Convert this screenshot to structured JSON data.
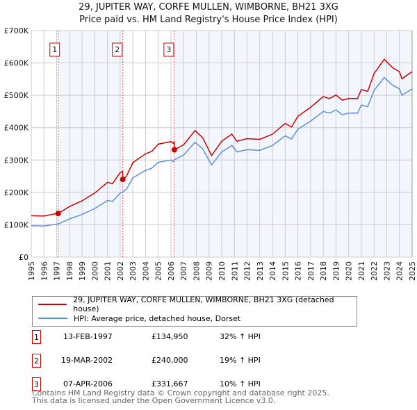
{
  "chart_data": {
    "type": "line",
    "title": "29, JUPITER WAY, CORFE MULLEN, WIMBORNE, BH21 3XG",
    "subtitle": "Price paid vs. HM Land Registry's House Price Index (HPI)",
    "xlim": [
      1995,
      2025
    ],
    "ylim": [
      0,
      700000
    ],
    "y_ticks": [
      {
        "v": 0,
        "l": "£0"
      },
      {
        "v": 100000,
        "l": "£100K"
      },
      {
        "v": 200000,
        "l": "£200K"
      },
      {
        "v": 300000,
        "l": "£300K"
      },
      {
        "v": 400000,
        "l": "£400K"
      },
      {
        "v": 500000,
        "l": "£500K"
      },
      {
        "v": 600000,
        "l": "£600K"
      },
      {
        "v": 700000,
        "l": "£700K"
      }
    ],
    "x_ticks": [
      "1995",
      "1996",
      "1997",
      "1998",
      "1999",
      "2000",
      "2001",
      "2002",
      "2003",
      "2004",
      "2005",
      "2006",
      "2007",
      "2008",
      "2009",
      "2010",
      "2011",
      "2012",
      "2013",
      "2014",
      "2015",
      "2016",
      "2017",
      "2018",
      "2019",
      "2020",
      "2021",
      "2022",
      "2023",
      "2024",
      "2025"
    ],
    "grid": true,
    "series": [
      {
        "name": "29, JUPITER WAY, CORFE MULLEN, WIMBORNE, BH21 3XG (detached house)",
        "color": "#cc0000",
        "x": [
          1995,
          1996,
          1997,
          1997.12,
          1998,
          1999,
          2000,
          2001,
          2001.4,
          2002,
          2002.2,
          2002.21,
          2002.5,
          2003,
          2004,
          2004.5,
          2005,
          2006,
          2006.2,
          2006.26,
          2006.27,
          2007,
          2007.9,
          2008.5,
          2009.2,
          2010,
          2010.8,
          2011.2,
          2012,
          2013,
          2014,
          2015,
          2015.5,
          2016,
          2017,
          2018,
          2018.5,
          2019,
          2019.5,
          2020,
          2020.7,
          2021,
          2021.5,
          2022,
          2022.8,
          2023.5,
          2024,
          2024.2,
          2025
        ],
        "y": [
          128000,
          127000,
          134600,
          134950,
          156000,
          174000,
          198000,
          231000,
          227000,
          261000,
          265000,
          240000,
          250000,
          292000,
          319000,
          327000,
          349000,
          357000,
          351000,
          358000,
          331667,
          347000,
          391000,
          369000,
          314000,
          358000,
          380000,
          358000,
          366000,
          364000,
          380000,
          413000,
          402000,
          435000,
          463000,
          496000,
          490000,
          501000,
          485000,
          490000,
          490000,
          518000,
          512000,
          567000,
          611000,
          584000,
          573000,
          551000,
          573000
        ]
      },
      {
        "name": "HPI: Average price, detached house, Dorset",
        "color": "#5b8fd4",
        "x": [
          1995,
          1996,
          1997,
          1997.12,
          1998,
          1999,
          2000,
          2001,
          2001.4,
          2002,
          2002.2,
          2002.5,
          2003,
          2004,
          2004.5,
          2005,
          2006,
          2006.2,
          2006.27,
          2007,
          2007.9,
          2008.5,
          2009.2,
          2010,
          2010.8,
          2011.2,
          2012,
          2013,
          2014,
          2015,
          2015.5,
          2016,
          2017,
          2018,
          2018.5,
          2019,
          2019.5,
          2020,
          2020.7,
          2021,
          2021.5,
          2022,
          2022.8,
          2023.5,
          2024,
          2024.2,
          2025
        ],
        "y": [
          97000,
          96000,
          102000,
          102200,
          118000,
          132000,
          150000,
          175000,
          172000,
          198000,
          201000,
          210000,
          245000,
          268000,
          275000,
          293000,
          300000,
          295000,
          301000,
          315000,
          355000,
          335000,
          285000,
          325000,
          345000,
          325000,
          332000,
          330000,
          345000,
          375000,
          365000,
          395000,
          420000,
          450000,
          445000,
          455000,
          440000,
          445000,
          445000,
          470000,
          465000,
          515000,
          555000,
          530000,
          520000,
          500000,
          520000
        ]
      }
    ],
    "sales": [
      {
        "n": "1",
        "x": 1997.12,
        "date": "13-FEB-1997",
        "price_value": 134950,
        "price": "£134,950",
        "hpi": "32% ↑ HPI"
      },
      {
        "n": "2",
        "x": 2002.21,
        "date": "19-MAR-2002",
        "price_value": 240000,
        "price": "£240,000",
        "hpi": "19% ↑ HPI"
      },
      {
        "n": "3",
        "x": 2006.27,
        "date": "07-APR-2006",
        "price_value": 331667,
        "price": "£331,667",
        "hpi": "10% ↑ HPI"
      }
    ],
    "legend_position": "below"
  },
  "footer": {
    "line1": "Contains HM Land Registry data © Crown copyright and database right 2025.",
    "line2": "This data is licensed under the Open Government Licence v3.0."
  }
}
